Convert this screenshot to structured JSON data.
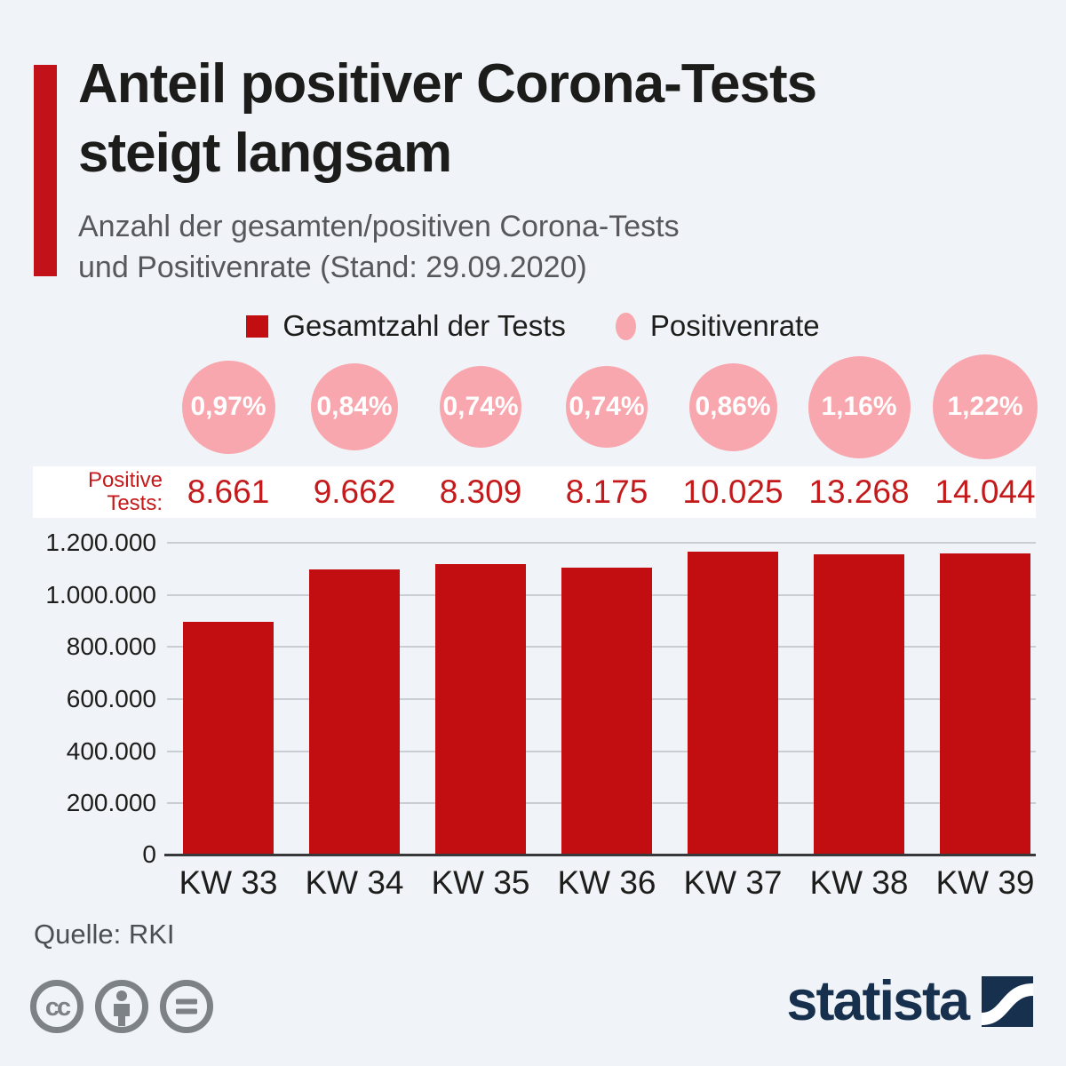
{
  "header": {
    "title_line1": "Anteil positiver Corona-Tests",
    "title_line2": "steigt langsam",
    "subtitle_line1": "Anzahl der gesamten/positiven Corona-Tests",
    "subtitle_line2": "und Positivenrate (Stand: 29.09.2020)"
  },
  "legend": {
    "tests_label": "Gesamtzahl der Tests",
    "rate_label": "Positivenrate"
  },
  "positive_row": {
    "label_line1": "Positive",
    "label_line2": "Tests:"
  },
  "chart_data": {
    "type": "bar",
    "title": "Anteil positiver Corona-Tests steigt langsam",
    "subtitle": "Anzahl der gesamten/positiven Corona-Tests und Positivenrate (Stand: 29.09.2020)",
    "categories": [
      "KW 33",
      "KW 34",
      "KW 35",
      "KW 36",
      "KW 37",
      "KW 38",
      "KW 39"
    ],
    "series": [
      {
        "name": "Gesamtzahl der Tests",
        "values": [
          892000,
          1093000,
          1116000,
          1101000,
          1163000,
          1151000,
          1156000
        ],
        "note": "estimated from bar heights against y-axis"
      },
      {
        "name": "Positive Tests",
        "values": [
          8661,
          9662,
          8309,
          8175,
          10025,
          13268,
          14044
        ]
      },
      {
        "name": "Positivenrate (%)",
        "values": [
          0.97,
          0.84,
          0.74,
          0.74,
          0.86,
          1.16,
          1.22
        ]
      }
    ],
    "y_axis": {
      "ticks": [
        "1.200.000",
        "1.000.000",
        "800.000",
        "600.000",
        "400.000",
        "200.000",
        "0"
      ],
      "min": 0,
      "max": 1200000,
      "grid": true
    },
    "legend_position": "top-center",
    "columns": [
      {
        "kw": "KW 33",
        "rate_label": "0,97%",
        "rate_value": 0.97,
        "positive_label": "8.661",
        "positive": 8661,
        "total_tests": 892000
      },
      {
        "kw": "KW 34",
        "rate_label": "0,84%",
        "rate_value": 0.84,
        "positive_label": "9.662",
        "positive": 9662,
        "total_tests": 1093000
      },
      {
        "kw": "KW 35",
        "rate_label": "0,74%",
        "rate_value": 0.74,
        "positive_label": "8.309",
        "positive": 8309,
        "total_tests": 1116000
      },
      {
        "kw": "KW 36",
        "rate_label": "0,74%",
        "rate_value": 0.74,
        "positive_label": "8.175",
        "positive": 8175,
        "total_tests": 1101000
      },
      {
        "kw": "KW 37",
        "rate_label": "0,86%",
        "rate_value": 0.86,
        "positive_label": "10.025",
        "positive": 10025,
        "total_tests": 1163000
      },
      {
        "kw": "KW 38",
        "rate_label": "1,16%",
        "rate_value": 1.16,
        "positive_label": "13.268",
        "positive": 13268,
        "total_tests": 1151000
      },
      {
        "kw": "KW 39",
        "rate_label": "1,22%",
        "rate_value": 1.22,
        "positive_label": "14.044",
        "positive": 14044,
        "total_tests": 1156000
      }
    ]
  },
  "source": {
    "text": "Quelle: RKI"
  },
  "footer": {
    "brand": "statista",
    "license_icons": [
      "cc-icon",
      "by-icon",
      "nd-icon"
    ]
  },
  "colors": {
    "background": "#f0f3f8",
    "bar_red": "#c20d11",
    "accent_red": "#c31119",
    "rate_pink": "#f9a7ae",
    "value_red": "#c41a1b",
    "brand_navy": "#16304e",
    "grid_gray": "#c9ced4",
    "icon_gray": "#7d8286"
  }
}
